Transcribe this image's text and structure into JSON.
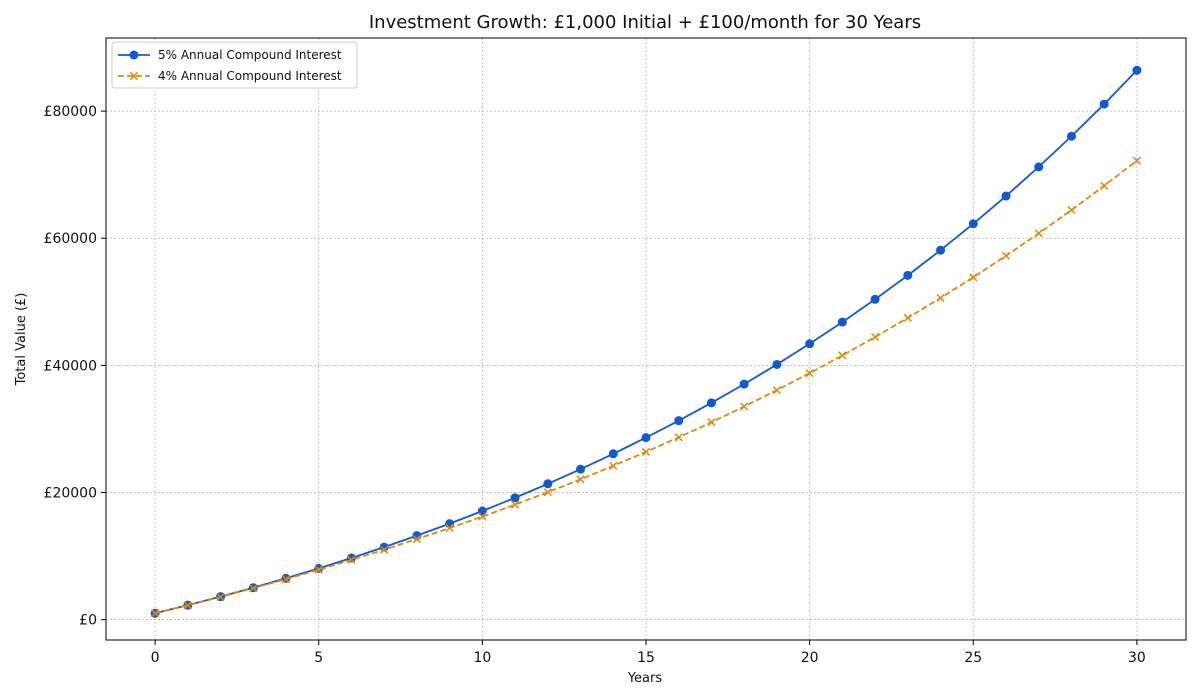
{
  "chart_data": {
    "type": "line",
    "title": "Investment Growth: £1,000 Initial + £100/month for 30 Years",
    "xlabel": "Years",
    "ylabel": "Total Value (£)",
    "xlim": [
      -1.5,
      31.5
    ],
    "ylim": [
      -3200,
      91500
    ],
    "x_ticks": [
      0,
      5,
      10,
      15,
      20,
      25,
      30
    ],
    "y_ticks": [
      0,
      20000,
      40000,
      60000,
      80000
    ],
    "y_tick_labels": [
      "£0",
      "£20000",
      "£40000",
      "£60000",
      "£80000"
    ],
    "grid": true,
    "legend_position": "top-left",
    "x": [
      0,
      1,
      2,
      3,
      4,
      5,
      6,
      7,
      8,
      9,
      10,
      11,
      12,
      13,
      14,
      15,
      16,
      17,
      18,
      19,
      20,
      21,
      22,
      23,
      24,
      25,
      26,
      27,
      28,
      29,
      30
    ],
    "series": [
      {
        "name": "5% Annual Compound Interest",
        "color": "#1059d3",
        "marker": "circle",
        "line_style": "solid",
        "values": [
          1000,
          2277,
          3619,
          5028,
          6508,
          8062,
          9696,
          11411,
          13213,
          15105,
          17092,
          19179,
          21372,
          23675,
          26094,
          28635,
          31304,
          34108,
          37053,
          40147,
          43397,
          46810,
          50396,
          54163,
          58119,
          62275,
          66641,
          71227,
          76044,
          81104,
          86420
        ]
      },
      {
        "name": "4% Annual Compound Interest",
        "color": "#db8b0b",
        "marker": "x",
        "line_style": "dashed",
        "values": [
          1000,
          2265,
          3582,
          4952,
          6377,
          7860,
          9402,
          11006,
          12675,
          14411,
          16217,
          18095,
          20048,
          22080,
          24193,
          26392,
          28678,
          31057,
          33531,
          36104,
          38780,
          41564,
          44459,
          47470,
          50602,
          53859,
          57247,
          60770,
          64435,
          68246,
          72211
        ]
      }
    ]
  }
}
